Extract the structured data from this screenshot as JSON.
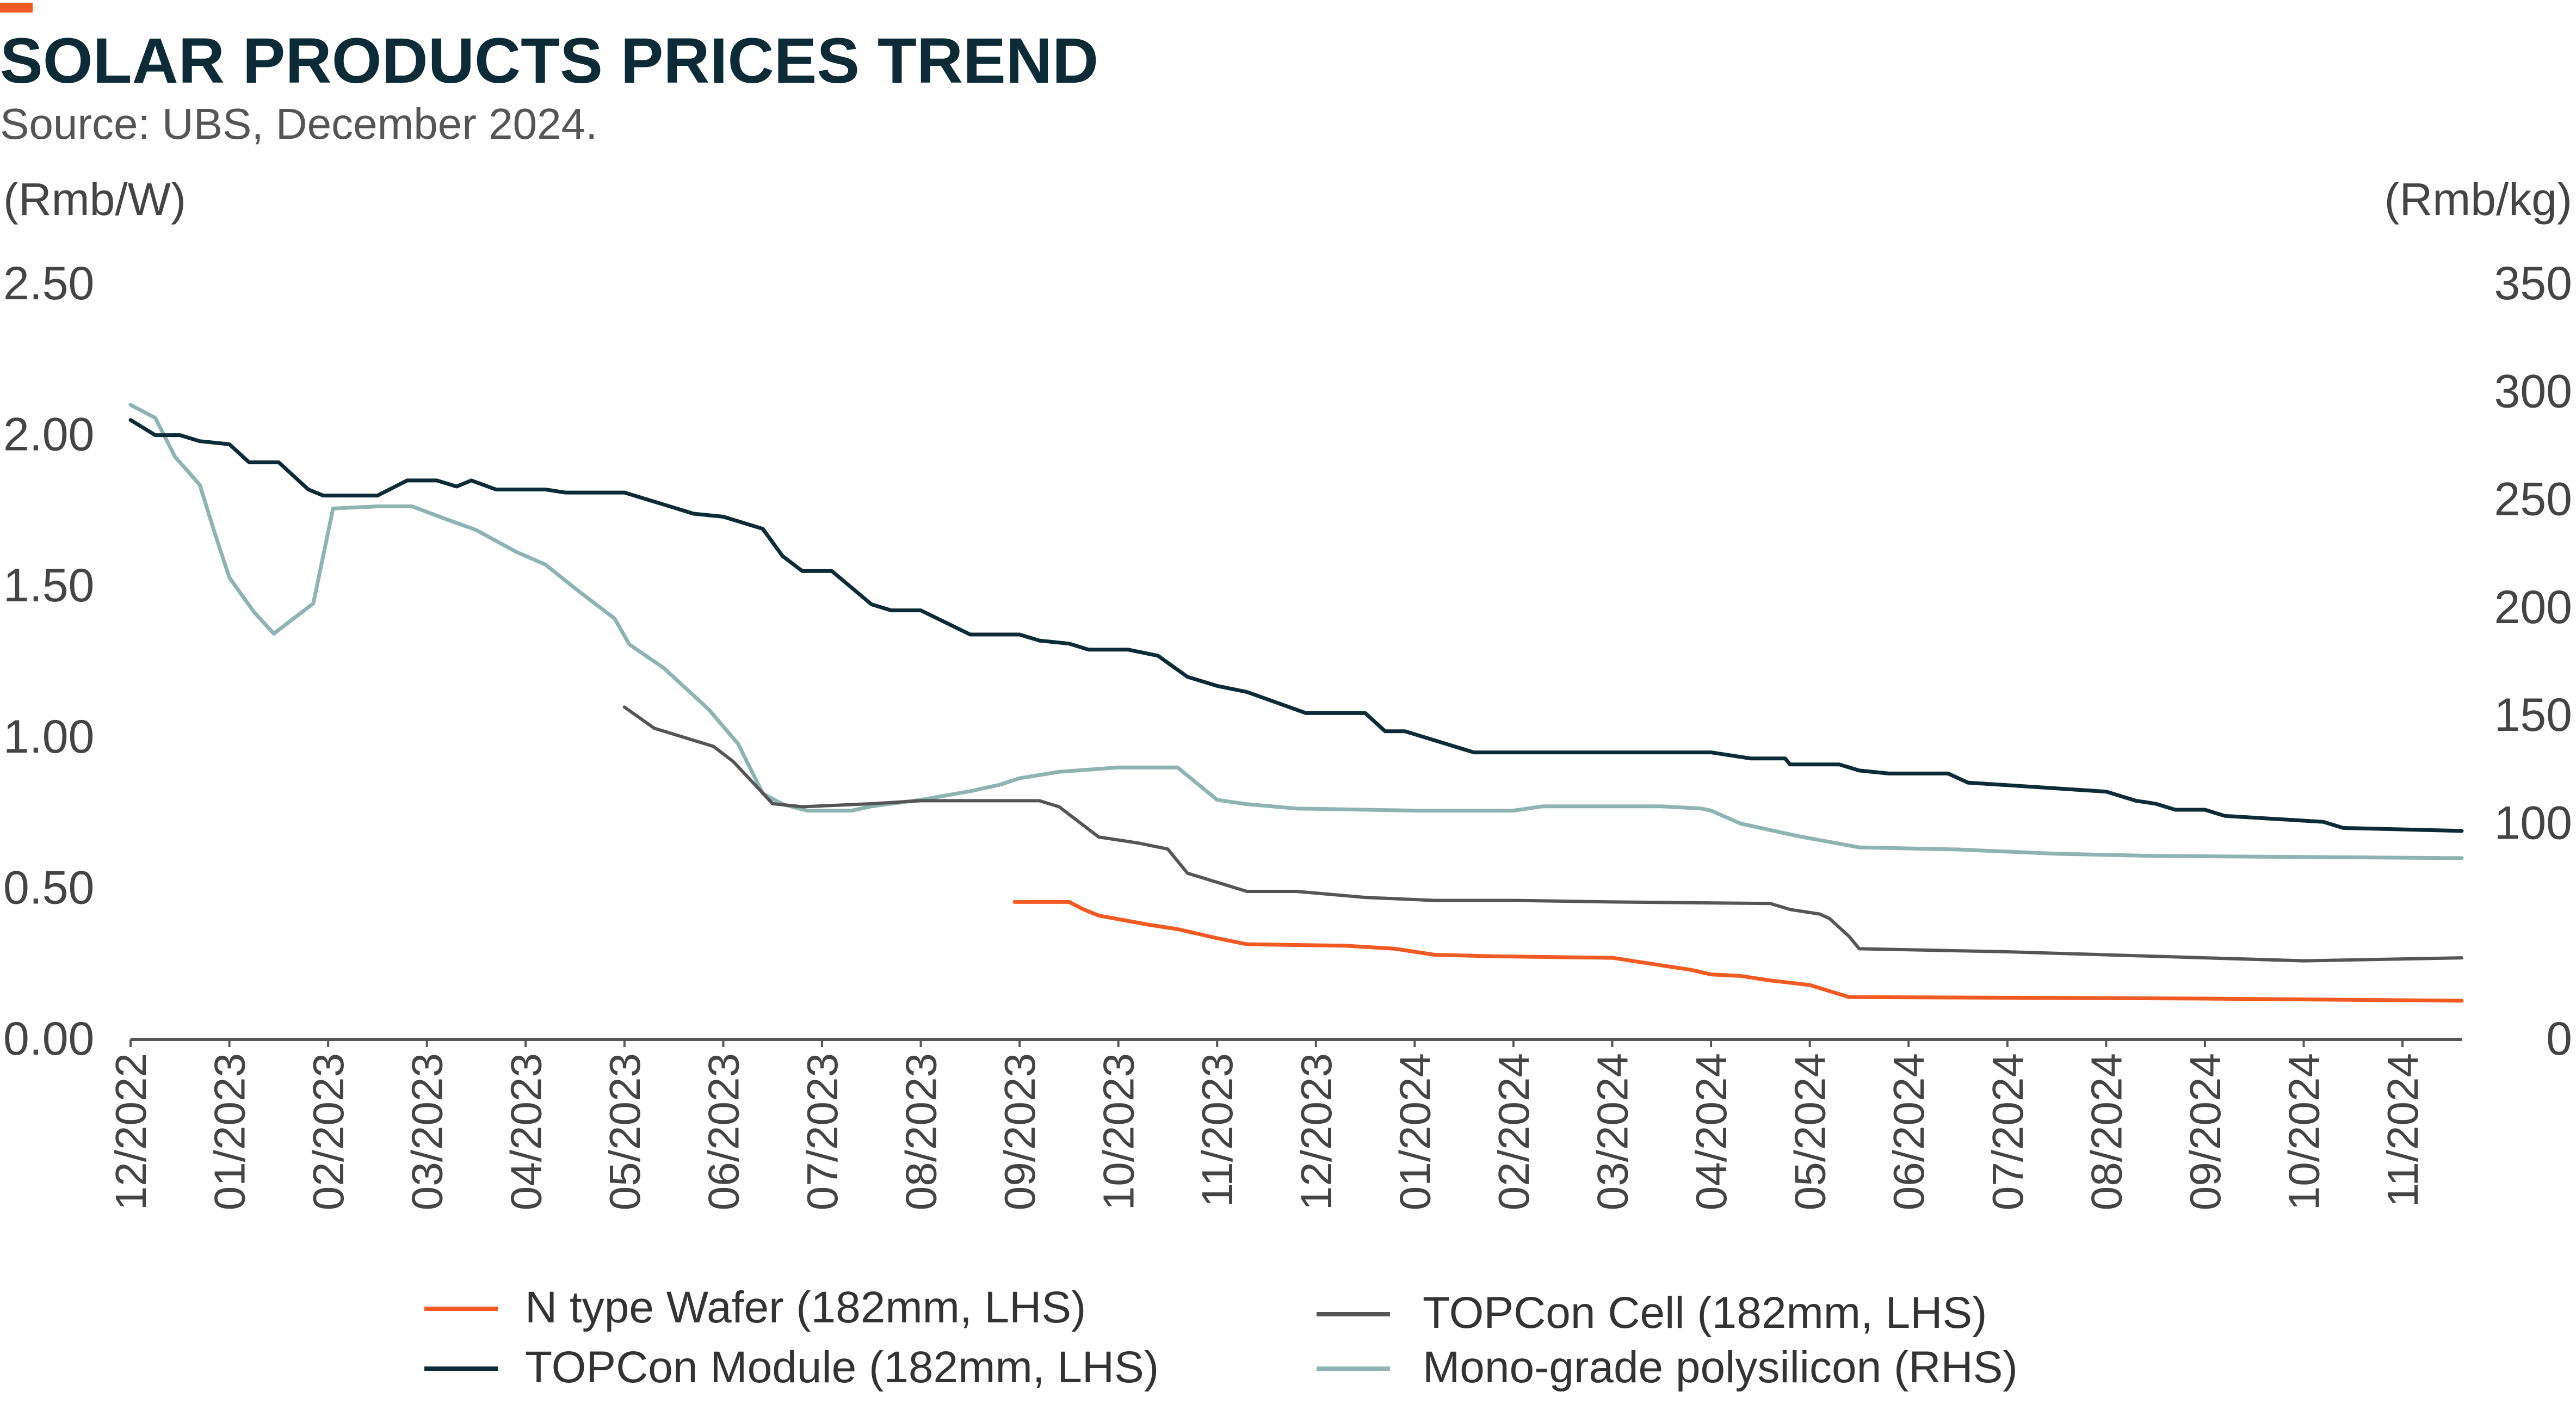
{
  "colors": {
    "accent": "#F15A22",
    "title": "#0D2B36",
    "wafer": "#F15A22",
    "module": "#0D2B36",
    "cell": "#555555",
    "polysilicon": "#8FB3B3",
    "axis": "#555555"
  },
  "chart_data": {
    "type": "line",
    "title": "SOLAR PRODUCTS PRICES TREND",
    "subtitle": "Source: UBS, December 2024.",
    "y_left_unit": "(Rmb/W)",
    "y_right_unit": "(Rmb/kg)",
    "y_left_ticks": [
      "2.50",
      "2.00",
      "1.50",
      "1.00",
      "0.50",
      "0.00"
    ],
    "y_right_ticks": [
      "350",
      "300",
      "250",
      "200",
      "150",
      "100",
      "0"
    ],
    "ylim_left": [
      0,
      2.5
    ],
    "ylim_right": [
      0,
      350
    ],
    "x_ticks": [
      "12/2022",
      "01/2023",
      "02/2023",
      "03/2023",
      "04/2023",
      "05/2023",
      "06/2023",
      "07/2023",
      "08/2023",
      "09/2023",
      "10/2023",
      "11/2023",
      "12/2023",
      "01/2024",
      "02/2024",
      "03/2024",
      "04/2024",
      "05/2024",
      "06/2024",
      "07/2024",
      "08/2024",
      "09/2024",
      "10/2024",
      "11/2024"
    ],
    "x_range_months": [
      0,
      23.6
    ],
    "grid": false,
    "legend_position": "bottom",
    "series": [
      {
        "name": "N type Wafer (182mm, LHS)",
        "axis": "left",
        "points": [
          [
            8.95,
            0.455
          ],
          [
            9.5,
            0.455
          ],
          [
            9.65,
            0.43
          ],
          [
            9.8,
            0.41
          ],
          [
            10.3,
            0.38
          ],
          [
            10.6,
            0.365
          ],
          [
            11.0,
            0.335
          ],
          [
            11.3,
            0.315
          ],
          [
            12.3,
            0.31
          ],
          [
            12.8,
            0.3
          ],
          [
            13.2,
            0.28
          ],
          [
            13.8,
            0.275
          ],
          [
            15.0,
            0.27
          ],
          [
            15.3,
            0.255
          ],
          [
            15.8,
            0.23
          ],
          [
            16.0,
            0.215
          ],
          [
            16.3,
            0.21
          ],
          [
            16.6,
            0.195
          ],
          [
            17.0,
            0.18
          ],
          [
            17.4,
            0.14
          ],
          [
            19.0,
            0.138
          ],
          [
            21.0,
            0.135
          ],
          [
            23.6,
            0.128
          ]
        ]
      },
      {
        "name": "TOPCon Module (182mm, LHS)",
        "axis": "left",
        "points": [
          [
            0,
            2.05
          ],
          [
            0.25,
            2.0
          ],
          [
            0.5,
            2.0
          ],
          [
            0.7,
            1.98
          ],
          [
            1.0,
            1.97
          ],
          [
            1.2,
            1.91
          ],
          [
            1.5,
            1.91
          ],
          [
            1.8,
            1.82
          ],
          [
            1.95,
            1.8
          ],
          [
            2.5,
            1.8
          ],
          [
            2.8,
            1.85
          ],
          [
            3.1,
            1.85
          ],
          [
            3.3,
            1.83
          ],
          [
            3.45,
            1.85
          ],
          [
            3.7,
            1.82
          ],
          [
            4.2,
            1.82
          ],
          [
            4.4,
            1.81
          ],
          [
            5.0,
            1.81
          ],
          [
            5.5,
            1.76
          ],
          [
            5.7,
            1.74
          ],
          [
            6.0,
            1.73
          ],
          [
            6.4,
            1.69
          ],
          [
            6.6,
            1.6
          ],
          [
            6.8,
            1.55
          ],
          [
            7.1,
            1.55
          ],
          [
            7.5,
            1.44
          ],
          [
            7.7,
            1.42
          ],
          [
            8.0,
            1.42
          ],
          [
            8.5,
            1.34
          ],
          [
            9.0,
            1.34
          ],
          [
            9.2,
            1.32
          ],
          [
            9.5,
            1.31
          ],
          [
            9.7,
            1.29
          ],
          [
            10.1,
            1.29
          ],
          [
            10.4,
            1.27
          ],
          [
            10.7,
            1.2
          ],
          [
            11.0,
            1.17
          ],
          [
            11.3,
            1.15
          ],
          [
            11.9,
            1.08
          ],
          [
            12.5,
            1.08
          ],
          [
            12.7,
            1.02
          ],
          [
            12.9,
            1.02
          ],
          [
            13.6,
            0.95
          ],
          [
            15.0,
            0.95
          ],
          [
            16.0,
            0.95
          ],
          [
            16.4,
            0.93
          ],
          [
            16.75,
            0.93
          ],
          [
            16.8,
            0.91
          ],
          [
            17.3,
            0.91
          ],
          [
            17.5,
            0.89
          ],
          [
            17.8,
            0.88
          ],
          [
            18.4,
            0.88
          ],
          [
            18.6,
            0.85
          ],
          [
            20.0,
            0.82
          ],
          [
            20.3,
            0.79
          ],
          [
            20.5,
            0.78
          ],
          [
            20.7,
            0.76
          ],
          [
            21.0,
            0.76
          ],
          [
            21.2,
            0.74
          ],
          [
            22.2,
            0.72
          ],
          [
            22.4,
            0.7
          ],
          [
            23.6,
            0.69
          ]
        ]
      },
      {
        "name": "TOPCon Cell (182mm, LHS)",
        "axis": "left",
        "points": [
          [
            5.0,
            1.1
          ],
          [
            5.3,
            1.03
          ],
          [
            5.5,
            1.01
          ],
          [
            5.9,
            0.97
          ],
          [
            6.1,
            0.92
          ],
          [
            6.5,
            0.78
          ],
          [
            6.8,
            0.77
          ],
          [
            7.5,
            0.78
          ],
          [
            8.0,
            0.79
          ],
          [
            9.2,
            0.79
          ],
          [
            9.4,
            0.77
          ],
          [
            9.6,
            0.72
          ],
          [
            9.8,
            0.67
          ],
          [
            10.2,
            0.65
          ],
          [
            10.5,
            0.63
          ],
          [
            10.7,
            0.55
          ],
          [
            11.0,
            0.52
          ],
          [
            11.3,
            0.49
          ],
          [
            11.8,
            0.49
          ],
          [
            12.5,
            0.47
          ],
          [
            13.2,
            0.46
          ],
          [
            14.0,
            0.46
          ],
          [
            15.0,
            0.455
          ],
          [
            16.6,
            0.45
          ],
          [
            16.8,
            0.43
          ],
          [
            17.1,
            0.415
          ],
          [
            17.2,
            0.4
          ],
          [
            17.4,
            0.34
          ],
          [
            17.5,
            0.3
          ],
          [
            19.0,
            0.29
          ],
          [
            21.0,
            0.27
          ],
          [
            22.0,
            0.26
          ],
          [
            23.6,
            0.27
          ]
        ]
      },
      {
        "name": "Mono-grade polysilicon (RHS)",
        "axis": "right",
        "points": [
          [
            0,
            294
          ],
          [
            0.25,
            288
          ],
          [
            0.45,
            270
          ],
          [
            0.7,
            257
          ],
          [
            0.85,
            235
          ],
          [
            1.0,
            214
          ],
          [
            1.25,
            198
          ],
          [
            1.45,
            188
          ],
          [
            1.85,
            202
          ],
          [
            2.05,
            246
          ],
          [
            2.5,
            247
          ],
          [
            2.85,
            247
          ],
          [
            3.2,
            241
          ],
          [
            3.5,
            236
          ],
          [
            3.9,
            226
          ],
          [
            4.2,
            220
          ],
          [
            4.5,
            209
          ],
          [
            4.9,
            195
          ],
          [
            5.05,
            183
          ],
          [
            5.4,
            172
          ],
          [
            5.85,
            153
          ],
          [
            6.15,
            137
          ],
          [
            6.4,
            114
          ],
          [
            6.6,
            109
          ],
          [
            6.85,
            106
          ],
          [
            7.3,
            106
          ],
          [
            7.5,
            108
          ],
          [
            8.0,
            111
          ],
          [
            8.5,
            115
          ],
          [
            8.8,
            118
          ],
          [
            9.0,
            121
          ],
          [
            9.4,
            124
          ],
          [
            10.0,
            126
          ],
          [
            10.6,
            126
          ],
          [
            11.0,
            111
          ],
          [
            11.3,
            109
          ],
          [
            11.8,
            107
          ],
          [
            13.0,
            106
          ],
          [
            14.0,
            106
          ],
          [
            14.3,
            108
          ],
          [
            15.0,
            108
          ],
          [
            15.5,
            108
          ],
          [
            15.9,
            107
          ],
          [
            16.0,
            106
          ],
          [
            16.3,
            100
          ],
          [
            16.6,
            97
          ],
          [
            16.9,
            94
          ],
          [
            17.5,
            89
          ],
          [
            18.5,
            88
          ],
          [
            19.5,
            86
          ],
          [
            20.5,
            85
          ],
          [
            23.6,
            84
          ]
        ]
      }
    ]
  }
}
